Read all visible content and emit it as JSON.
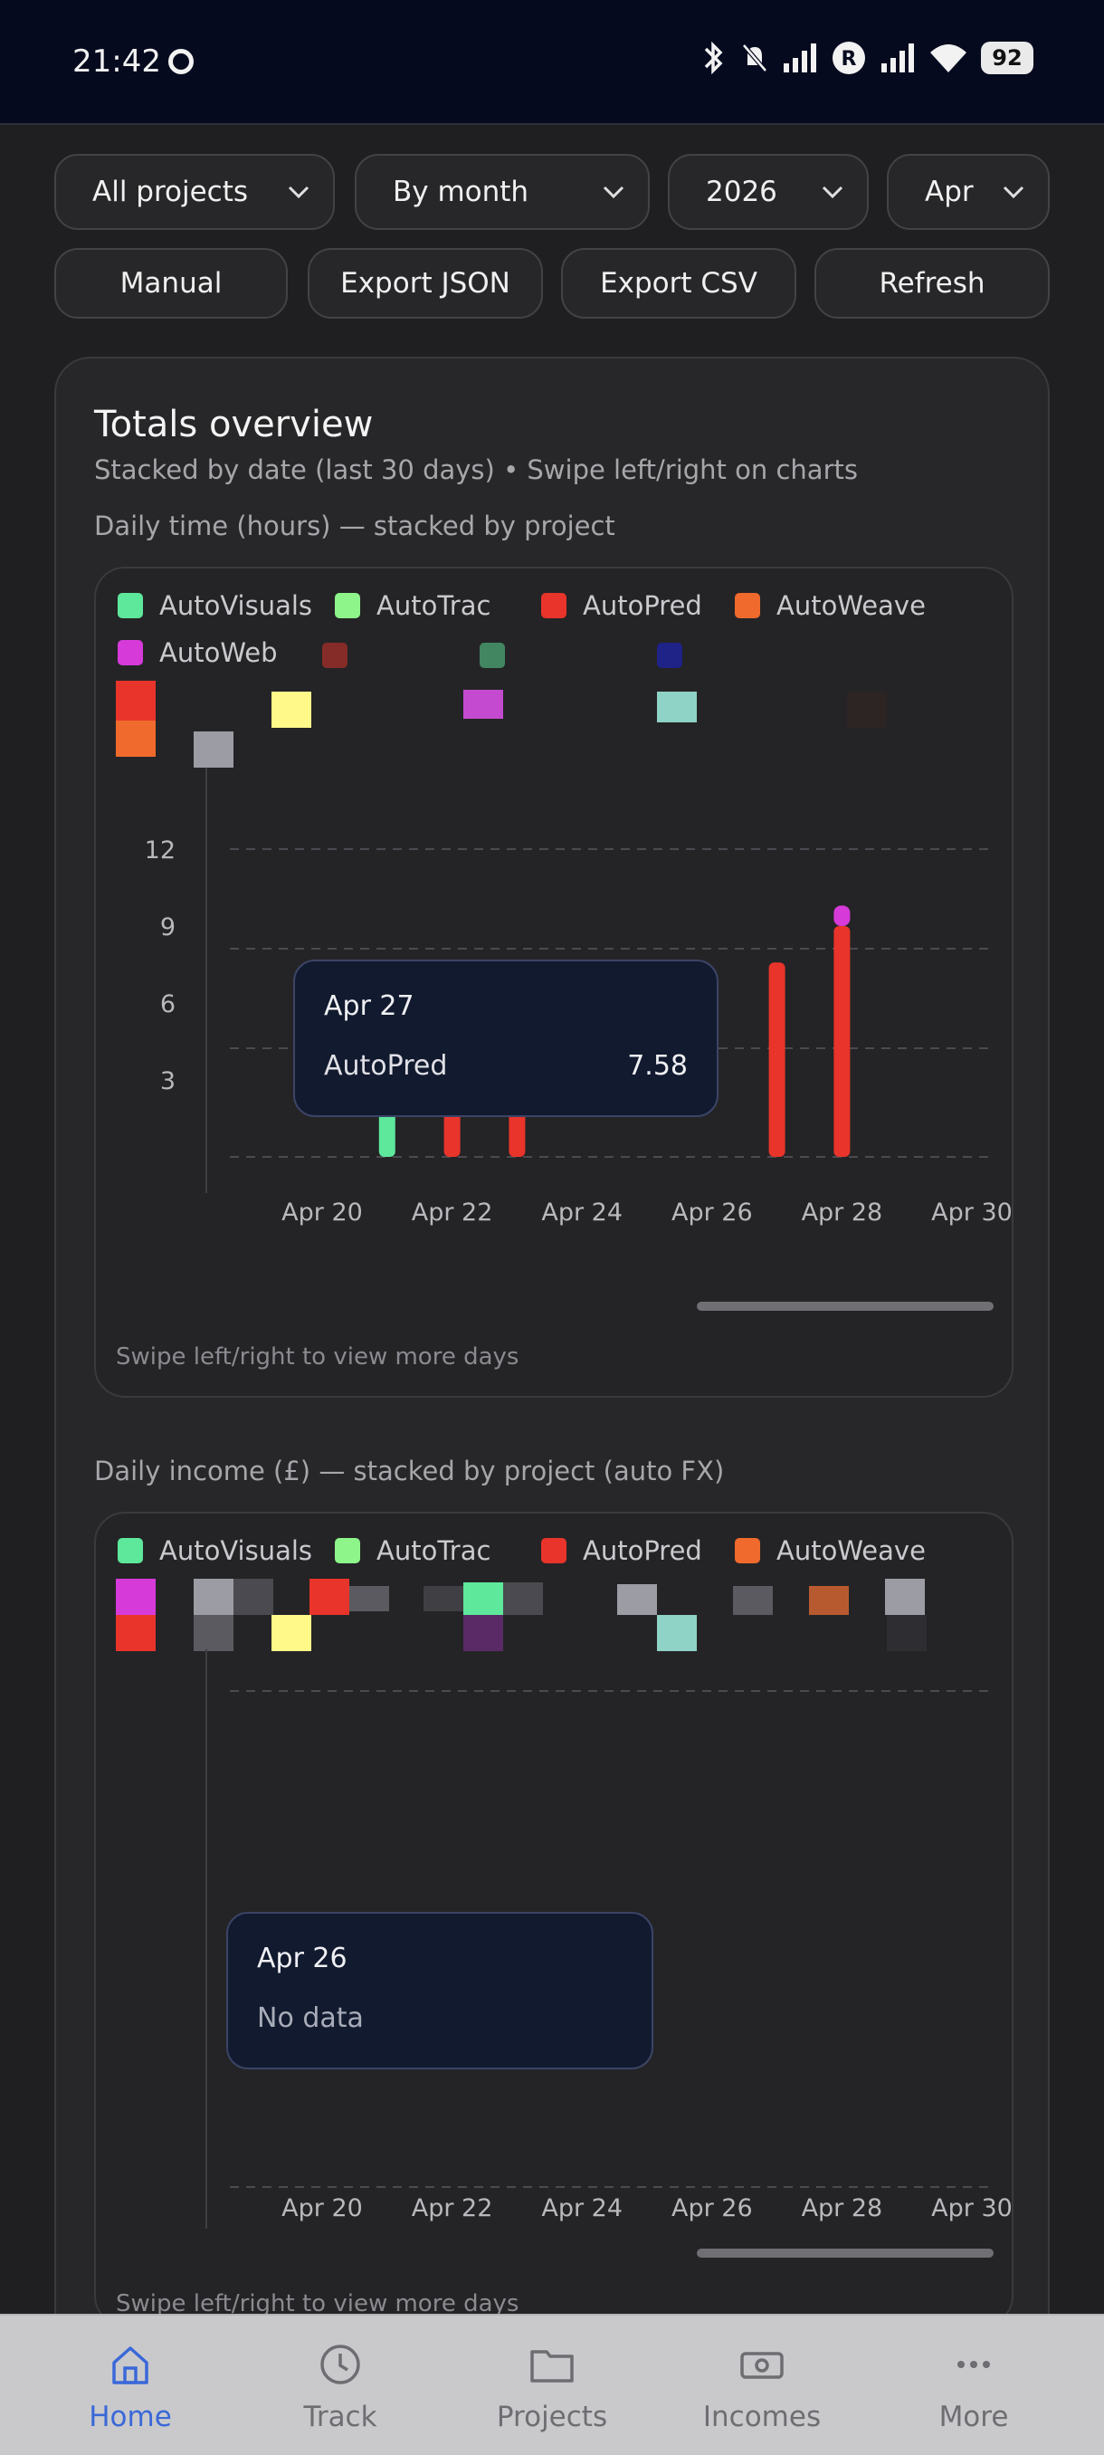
{
  "status_bar": {
    "time": "21:42",
    "battery": "92"
  },
  "filters": {
    "project": "All projects",
    "period": "By month",
    "year": "2026",
    "month": "Apr"
  },
  "actions": {
    "manual": "Manual",
    "export_json": "Export JSON",
    "export_csv": "Export CSV",
    "refresh": "Refresh"
  },
  "overview": {
    "title": "Totals overview",
    "subtitle": "Stacked by date (last 30 days) • Swipe left/right on charts",
    "time_label": "Daily time (hours) — stacked by project",
    "income_label": "Daily income (£) — stacked by project (auto FX)",
    "swipe_hint": "Swipe left/right to view more days"
  },
  "legend": [
    {
      "name": "AutoVisuals",
      "color": "#5ee89c"
    },
    {
      "name": "AutoTrac",
      "color": "#8ef58a"
    },
    {
      "name": "AutoPred",
      "color": "#e8342a"
    },
    {
      "name": "AutoWeave",
      "color": "#ef6a2c"
    },
    {
      "name": "AutoWeb",
      "color": "#d63ad9"
    }
  ],
  "time_tooltip": {
    "date": "Apr 27",
    "project": "AutoPred",
    "value": "7.58"
  },
  "income_tooltip": {
    "date": "Apr 26",
    "text": "No data"
  },
  "chart_data": [
    {
      "type": "bar",
      "title": "Daily time (hours) — stacked by project",
      "x_tick_labels": [
        "Apr 20",
        "Apr 22",
        "Apr 24",
        "Apr 26",
        "Apr 28",
        "Apr 30"
      ],
      "y_tick_labels": [
        "3",
        "6",
        "9",
        "12"
      ],
      "ylim": [
        0,
        12
      ],
      "grid": true,
      "bars": [
        {
          "x": "Apr 21",
          "series": "AutoVisuals",
          "value": 5.0,
          "color": "#5ee89c"
        },
        {
          "x": "Apr 22",
          "series": "AutoPred",
          "value": 4.2,
          "color": "#e8342a"
        },
        {
          "x": "Apr 23",
          "series": "AutoPred",
          "value": 4.4,
          "color": "#e8342a"
        },
        {
          "x": "Apr 27",
          "series": "AutoPred",
          "value": 7.58,
          "color": "#e8342a"
        },
        {
          "x": "Apr 28",
          "series": "AutoPred",
          "value": 9.0,
          "color": "#e8342a"
        },
        {
          "x": "Apr 28",
          "series": "AutoWeb",
          "value": 0.8,
          "color": "#d63ad9"
        }
      ]
    },
    {
      "type": "bar",
      "title": "Daily income (£) — stacked by project (auto FX)",
      "x_tick_labels": [
        "Apr 20",
        "Apr 22",
        "Apr 24",
        "Apr 26",
        "Apr 28",
        "Apr 30"
      ],
      "grid": true,
      "bars": []
    }
  ]
}
